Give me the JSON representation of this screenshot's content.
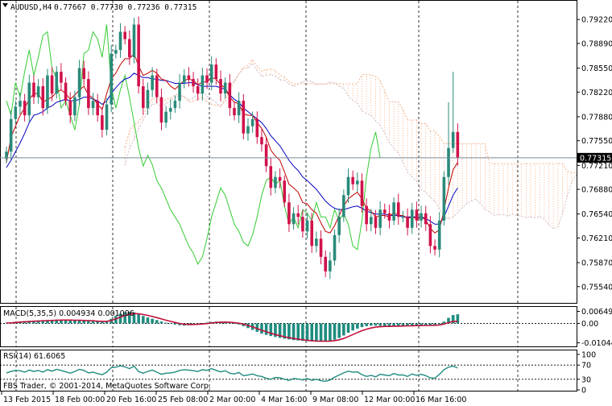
{
  "header": {
    "symbol": "AUDUSD,H4",
    "ohlc": "0.77667 0.77730 0.77236 0.77315"
  },
  "colors": {
    "bull": "#2a8a7a",
    "bear": "#d0124a",
    "tenkan": "#c00000",
    "kijun": "#0000c0",
    "chikou": "#33cc33",
    "cloud_bull": "#c8a8b8",
    "cloud_bear": "#f0a070",
    "macd_hist": "#1f8c80",
    "macd_signal": "#c0103a",
    "rsi_line": "#1f8c80",
    "grid": "#000000",
    "price_line": "#7a8a9a"
  },
  "chart_data": [
    {
      "type": "candlestick",
      "name": "main",
      "ylim": [
        0.7536,
        0.794
      ],
      "y_ticks": [
        "0.79220",
        "0.78890",
        "0.78550",
        "0.78220",
        "0.77880",
        "0.77550",
        "0.77210",
        "0.76880",
        "0.76540",
        "0.76210",
        "0.75870",
        "0.75540"
      ],
      "current_price": "0.77315",
      "x_labels": [
        "13 Feb 2015",
        "18 Feb 00:00",
        "20 Feb 16:00",
        "25 Feb 08:00",
        "2 Mar 00:00",
        "4 Mar 16:00",
        "9 Mar 08:00",
        "12 Mar 00:00",
        "16 Mar 16:00"
      ],
      "close": [
        0.774,
        0.7785,
        0.7802,
        0.781,
        0.779,
        0.7835,
        0.7815,
        0.783,
        0.78,
        0.7845,
        0.782,
        0.785,
        0.7835,
        0.781,
        0.779,
        0.7815,
        0.7855,
        0.784,
        0.78,
        0.781,
        0.779,
        0.777,
        0.7805,
        0.7875,
        0.788,
        0.7905,
        0.7895,
        0.787,
        0.7915,
        0.783,
        0.78,
        0.7825,
        0.7845,
        0.7815,
        0.778,
        0.7795,
        0.78,
        0.781,
        0.7835,
        0.7845,
        0.784,
        0.783,
        0.782,
        0.7845,
        0.7835,
        0.786,
        0.784,
        0.782,
        0.7835,
        0.78,
        0.779,
        0.781,
        0.7765,
        0.7775,
        0.7785,
        0.776,
        0.775,
        0.772,
        0.769,
        0.7705,
        0.77,
        0.767,
        0.764,
        0.7655,
        0.765,
        0.763,
        0.7645,
        0.761,
        0.762,
        0.7595,
        0.7575,
        0.759,
        0.7625,
        0.765,
        0.768,
        0.7705,
        0.7695,
        0.77,
        0.7665,
        0.764,
        0.765,
        0.7635,
        0.766,
        0.7655,
        0.7645,
        0.767,
        0.765,
        0.765,
        0.7635,
        0.766,
        0.7645,
        0.7655,
        0.764,
        0.761,
        0.7605,
        0.7645,
        0.7705,
        0.7745,
        0.7767,
        0.77315
      ],
      "tenkan_sen": [
        0.7725,
        0.776,
        0.7775,
        0.779,
        0.78,
        0.7812,
        0.782,
        0.782,
        0.7808,
        0.7812,
        0.7815,
        0.7822,
        0.7825,
        0.782,
        0.7812,
        0.7818,
        0.7825,
        0.783,
        0.7818,
        0.7814,
        0.7805,
        0.7798,
        0.782,
        0.784,
        0.7848,
        0.786,
        0.7868,
        0.7868,
        0.7875,
        0.7858,
        0.7845,
        0.7848,
        0.7852,
        0.7848,
        0.784,
        0.7838,
        0.783,
        0.7826,
        0.7832,
        0.7838,
        0.784,
        0.7838,
        0.7832,
        0.7836,
        0.7836,
        0.7842,
        0.784,
        0.7832,
        0.7828,
        0.7815,
        0.7808,
        0.7806,
        0.7792,
        0.779,
        0.779,
        0.778,
        0.7772,
        0.776,
        0.7742,
        0.7734,
        0.7728,
        0.7712,
        0.7695,
        0.769,
        0.7684,
        0.767,
        0.7668,
        0.766,
        0.7655,
        0.7642,
        0.763,
        0.7628,
        0.7638,
        0.7652,
        0.7665,
        0.7675,
        0.768,
        0.7684,
        0.7675,
        0.7662,
        0.7658,
        0.765,
        0.7652,
        0.7652,
        0.765,
        0.7656,
        0.7652,
        0.7652,
        0.7648,
        0.765,
        0.7648,
        0.765,
        0.7646,
        0.7634,
        0.7628,
        0.7632,
        0.766,
        0.769,
        0.7715,
        0.7725
      ],
      "kijun_sen": [
        0.7718,
        0.7728,
        0.774,
        0.7752,
        0.7765,
        0.778,
        0.779,
        0.7792,
        0.7795,
        0.78,
        0.7803,
        0.7808,
        0.781,
        0.7812,
        0.781,
        0.781,
        0.7812,
        0.7815,
        0.7815,
        0.7812,
        0.781,
        0.7805,
        0.781,
        0.782,
        0.7828,
        0.7835,
        0.784,
        0.7842,
        0.7848,
        0.7845,
        0.7842,
        0.7842,
        0.784,
        0.784,
        0.7838,
        0.7838,
        0.7836,
        0.7834,
        0.7834,
        0.7834,
        0.7835,
        0.7835,
        0.7832,
        0.783,
        0.783,
        0.783,
        0.783,
        0.7828,
        0.7826,
        0.7818,
        0.7812,
        0.7808,
        0.78,
        0.7795,
        0.779,
        0.7785,
        0.778,
        0.7772,
        0.7762,
        0.7755,
        0.7748,
        0.7738,
        0.7728,
        0.772,
        0.7714,
        0.7705,
        0.77,
        0.7694,
        0.7688,
        0.768,
        0.7672,
        0.7666,
        0.7662,
        0.766,
        0.766,
        0.7662,
        0.7664,
        0.7665,
        0.7662,
        0.7658,
        0.7656,
        0.7654,
        0.7654,
        0.7654,
        0.7652,
        0.7652,
        0.7652,
        0.765,
        0.765,
        0.765,
        0.765,
        0.765,
        0.7648,
        0.7644,
        0.764,
        0.764,
        0.765,
        0.7665,
        0.768,
        0.769
      ],
      "chikou_span": [
        0.781,
        0.779,
        0.7835,
        0.7815,
        0.785,
        0.788,
        0.7845,
        0.787,
        0.79,
        0.7905,
        0.7855,
        0.784,
        0.78,
        0.781,
        0.779,
        0.777,
        0.7805,
        0.7875,
        0.788,
        0.7905,
        0.7895,
        0.787,
        0.7915,
        0.783,
        0.78,
        0.7825,
        0.7845,
        0.7815,
        0.778,
        0.7745,
        0.772,
        0.7735,
        0.7722,
        0.77,
        0.769,
        0.7675,
        0.766,
        0.765,
        0.764,
        0.7625,
        0.761,
        0.76,
        0.7585,
        0.7595,
        0.762,
        0.765,
        0.767,
        0.769,
        0.768,
        0.766,
        0.764,
        0.763,
        0.7615,
        0.761,
        0.7625,
        0.765,
        0.768,
        0.77,
        0.7705,
        0.7695,
        0.77,
        0.7665,
        0.764,
        0.765,
        0.7635,
        0.766,
        0.7655,
        0.7645,
        0.767,
        0.765,
        0.765,
        0.7635,
        0.766,
        0.7645,
        0.7655,
        0.764,
        0.761,
        0.7605,
        0.7645,
        0.7705,
        0.7745,
        0.7767,
        0.77315
      ]
    },
    {
      "type": "macd",
      "name": "macd",
      "label": "MACD(5,35,5) 0.004934 0.001096",
      "ylim": [
        -0.0115,
        0.008
      ],
      "y_ticks": [
        "0.00649",
        "0.00",
        "-0.010448"
      ],
      "histogram": [
        0.0004,
        0.0006,
        0.0009,
        0.0011,
        0.0012,
        0.0014,
        0.0015,
        0.0016,
        0.0017,
        0.0018,
        0.0019,
        0.002,
        0.002,
        0.0019,
        0.0018,
        0.0017,
        0.0016,
        0.0015,
        0.0013,
        0.0012,
        0.001,
        0.0008,
        0.001,
        0.0025,
        0.004,
        0.0052,
        0.006,
        0.0062,
        0.006,
        0.005,
        0.004,
        0.0032,
        0.0025,
        0.0018,
        0.001,
        0.0004,
        -0.0002,
        -0.0006,
        -0.001,
        -0.0012,
        -0.001,
        -0.0006,
        -0.0002,
        0.0002,
        0.0005,
        0.0008,
        0.001,
        0.001,
        0.0008,
        0.0004,
        0.0,
        -0.0006,
        -0.0015,
        -0.0025,
        -0.0035,
        -0.0045,
        -0.0055,
        -0.0062,
        -0.0068,
        -0.0073,
        -0.0078,
        -0.0082,
        -0.0086,
        -0.009,
        -0.0092,
        -0.0094,
        -0.0096,
        -0.0097,
        -0.0098,
        -0.0098,
        -0.0097,
        -0.0094,
        -0.0088,
        -0.0078,
        -0.0065,
        -0.005,
        -0.0038,
        -0.0028,
        -0.002,
        -0.0015,
        -0.0012,
        -0.0012,
        -0.0013,
        -0.0014,
        -0.0015,
        -0.0014,
        -0.0013,
        -0.0012,
        -0.0012,
        -0.0011,
        -0.0011,
        -0.0011,
        -0.001,
        -0.001,
        -0.0009,
        -0.0005,
        0.001,
        0.003,
        0.0045,
        0.0049
      ],
      "signal": [
        0.0002,
        0.0003,
        0.0005,
        0.0007,
        0.0009,
        0.001,
        0.0012,
        0.0013,
        0.0014,
        0.0015,
        0.0016,
        0.0017,
        0.0018,
        0.0018,
        0.0018,
        0.0017,
        0.0017,
        0.0016,
        0.0015,
        0.0014,
        0.0012,
        0.0011,
        0.0011,
        0.0016,
        0.0024,
        0.0033,
        0.0042,
        0.0049,
        0.0053,
        0.0052,
        0.0048,
        0.0043,
        0.0037,
        0.0031,
        0.0024,
        0.0017,
        0.0011,
        0.0005,
        0.0,
        -0.0004,
        -0.0006,
        -0.0006,
        -0.0005,
        -0.0003,
        -0.0001,
        0.0002,
        0.0005,
        0.0006,
        0.0007,
        0.0006,
        0.0004,
        0.0001,
        -0.0004,
        -0.0011,
        -0.0019,
        -0.0028,
        -0.0037,
        -0.0045,
        -0.0053,
        -0.006,
        -0.0066,
        -0.0072,
        -0.0077,
        -0.0081,
        -0.0085,
        -0.0088,
        -0.0091,
        -0.0093,
        -0.0095,
        -0.0096,
        -0.0096,
        -0.0095,
        -0.0093,
        -0.0088,
        -0.0081,
        -0.0071,
        -0.006,
        -0.0049,
        -0.0039,
        -0.0031,
        -0.0025,
        -0.002,
        -0.0018,
        -0.0016,
        -0.0016,
        -0.0015,
        -0.0015,
        -0.0014,
        -0.0013,
        -0.0013,
        -0.0012,
        -0.0012,
        -0.0011,
        -0.0011,
        -0.001,
        -0.0009,
        -0.0004,
        0.0004,
        0.0011,
        0.0011
      ]
    },
    {
      "type": "line",
      "name": "rsi",
      "label": "RSI(14) 61.6065",
      "ylim": [
        0,
        100
      ],
      "y_ticks": [
        "100",
        "70",
        "30",
        "0"
      ],
      "levels": [
        70,
        30
      ],
      "values": [
        48,
        52,
        55,
        54,
        50,
        56,
        52,
        55,
        50,
        57,
        53,
        58,
        55,
        51,
        47,
        52,
        58,
        55,
        48,
        50,
        46,
        43,
        50,
        63,
        64,
        68,
        65,
        60,
        67,
        52,
        47,
        52,
        56,
        50,
        44,
        47,
        48,
        50,
        55,
        57,
        56,
        54,
        52,
        57,
        55,
        60,
        55,
        51,
        54,
        47,
        45,
        49,
        40,
        42,
        45,
        40,
        38,
        33,
        30,
        35,
        34,
        30,
        27,
        32,
        31,
        28,
        32,
        27,
        30,
        26,
        24,
        28,
        36,
        42,
        48,
        53,
        50,
        51,
        43,
        38,
        41,
        37,
        44,
        42,
        40,
        46,
        42,
        42,
        38,
        45,
        41,
        44,
        40,
        34,
        33,
        44,
        57,
        64,
        67,
        61.6
      ]
    }
  ],
  "footer": {
    "copyright": "FBS Trader, © 2001-2014, MetaQuotes Software Corp."
  }
}
